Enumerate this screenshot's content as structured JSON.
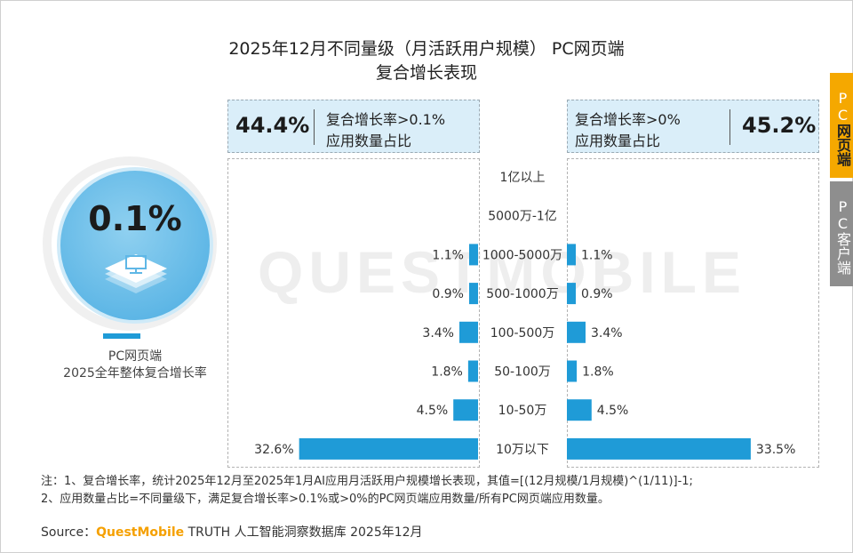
{
  "title": {
    "line1": "2025年12月不同量级（月活跃用户规模） PC网页端",
    "line2": "复合增长表现"
  },
  "side_tabs": [
    {
      "pre": "PC",
      "label": "网页端",
      "active": true
    },
    {
      "pre": "PC",
      "label": "客户端",
      "active": false
    }
  ],
  "watermark": "QUESTMOBILE",
  "overall": {
    "value": "0.1%",
    "caption_line1": "PC网页端",
    "caption_line2": "2025全年整体复合增长率",
    "icon": "pc-device-icon"
  },
  "summary_left": {
    "value": "44.4%",
    "label_line1": "复合增长率>0.1%",
    "label_line2": "应用数量占比"
  },
  "summary_right": {
    "value": "45.2%",
    "label_line1": "复合增长率>0%",
    "label_line2": "应用数量占比"
  },
  "chart_data": {
    "type": "bar",
    "orientation": "horizontal-mirrored",
    "categories": [
      "1亿以上",
      "5000万-1亿",
      "1000-5000万",
      "500-1000万",
      "100-500万",
      "50-100万",
      "10-50万",
      "10万以下"
    ],
    "series": [
      {
        "side": "left",
        "values": [
          null,
          null,
          1.1,
          0.9,
          3.4,
          1.8,
          4.5,
          32.6
        ],
        "labels": [
          "",
          "",
          "1.1%",
          "0.9%",
          "3.4%",
          "1.8%",
          "4.5%",
          "32.6%"
        ]
      },
      {
        "side": "right",
        "values": [
          null,
          null,
          1.1,
          0.9,
          3.4,
          1.8,
          4.5,
          33.5
        ],
        "labels": [
          "",
          "",
          "1.1%",
          "0.9%",
          "3.4%",
          "1.8%",
          "4.5%",
          "33.5%"
        ]
      }
    ],
    "unit": "%",
    "xlim": [
      0,
      34
    ]
  },
  "notes": {
    "line1": "注：1、复合增长率，统计2025年12月至2025年1月AI应用月活跃用户规模增长表现，其值=[(12月规模/1月规模)^(1/11)]-1;",
    "line2": "2、应用数量占比=不同量级下，满足复合增长率>0.1%或>0%的PC网页端应用数量/所有PC网页端应用数量。"
  },
  "source": {
    "prefix": "Source：",
    "brand": "QuestMobile",
    "rest": " TRUTH 人工智能洞察数据库 2025年12月"
  },
  "colors": {
    "bar": "#1f9bd7",
    "accent": "#f5a800",
    "summary_bg": "#daeef9",
    "circle": "#5fb7e6"
  }
}
